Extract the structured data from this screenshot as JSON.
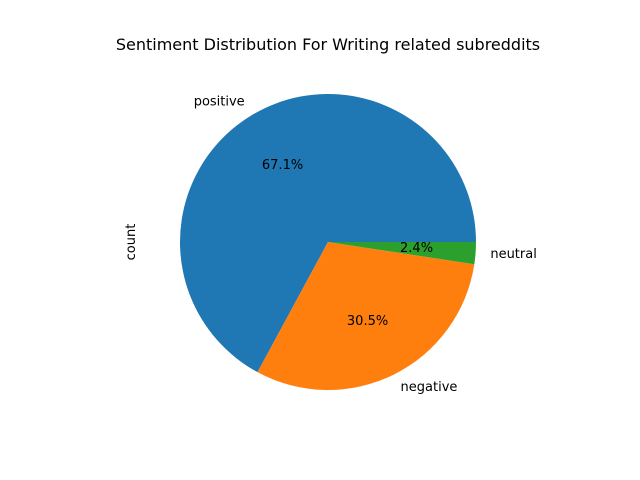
{
  "chart_data": {
    "type": "pie",
    "title": "Sentiment Distribution For Writing related subreddits",
    "ylabel": "count",
    "start_angle_deg": 0,
    "direction": "counterclockwise",
    "slices": [
      {
        "label": "positive",
        "value": 67.1,
        "pct_label": "67.1%",
        "color": "#1f77b4"
      },
      {
        "label": "negative",
        "value": 30.5,
        "pct_label": "30.5%",
        "color": "#ff7f0e"
      },
      {
        "label": "neutral",
        "value": 2.4,
        "pct_label": "2.4%",
        "color": "#2ca02c"
      }
    ]
  }
}
